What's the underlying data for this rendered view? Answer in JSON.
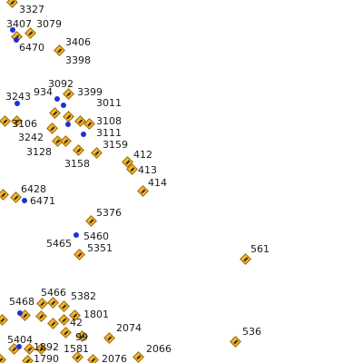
{
  "map": {
    "sign_color": "#f2b632",
    "dot_color": "#1f2fd6",
    "marker_icon": "traffic-sign-diamond-icon",
    "labels": [
      "3327",
      "3407",
      "3079",
      "6470",
      "3406",
      "3398",
      "3092",
      "934",
      "3399",
      "3243",
      "3011",
      "3106",
      "3108",
      "3242",
      "3111",
      "3128",
      "3159",
      "3158",
      "412",
      "413",
      "414",
      "6428",
      "6471",
      "5376",
      "5460",
      "5465",
      "5351",
      "561",
      "5468",
      "5466",
      "5382",
      "1801",
      "42",
      "2074",
      "536",
      "5404",
      "1892",
      "99",
      "1581",
      "2066",
      "1790",
      "2076"
    ]
  }
}
